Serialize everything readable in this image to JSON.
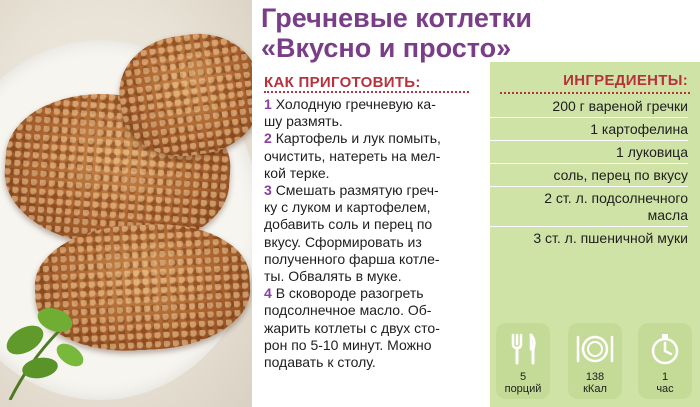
{
  "title": {
    "line1": "Гречневые котлетки",
    "line2": "«Вкусно и просто»"
  },
  "how_to": {
    "heading": "КАК ПРИГОТОВИТЬ:",
    "steps": [
      {
        "num": "1",
        "text": "Холодную гречневую ка-\nшу размять."
      },
      {
        "num": "2",
        "text": "Картофель и лук помыть,\nочистить, натереть на мел-\nкой терке."
      },
      {
        "num": "3",
        "text": "Смешать размятую греч-\nку с луком и картофелем,\nдобавить соль и перец по\nвкусу. Сформировать из\nполученного фарша котле-\nты. Обвалять в муке."
      },
      {
        "num": "4",
        "text": "В сковороде разогреть\nподсолнечное масло. Об-\nжарить котлеты с двух сто-\nрон по 5-10 минут. Можно\nподавать к столу."
      }
    ]
  },
  "ingredients": {
    "heading": "ИНГРЕДИЕНТЫ:",
    "items": [
      "200 г вареной гречки",
      "1 картофелина",
      "1 луковица",
      "соль, перец по вкусу",
      "2 ст. л. подсолнечного\nмасла",
      "3 ст. л. пшеничной муки"
    ]
  },
  "badges": [
    {
      "icon": "fork-knife-icon",
      "value": "5",
      "unit": "порций"
    },
    {
      "icon": "plate-icon",
      "value": "138",
      "unit": "кКал"
    },
    {
      "icon": "stopwatch-icon",
      "value": "1",
      "unit": "час"
    }
  ],
  "colors": {
    "title": "#7a3e88",
    "heading": "#b8323c",
    "step_number": "#8a3fa0",
    "panel": "#cfe3a6"
  }
}
